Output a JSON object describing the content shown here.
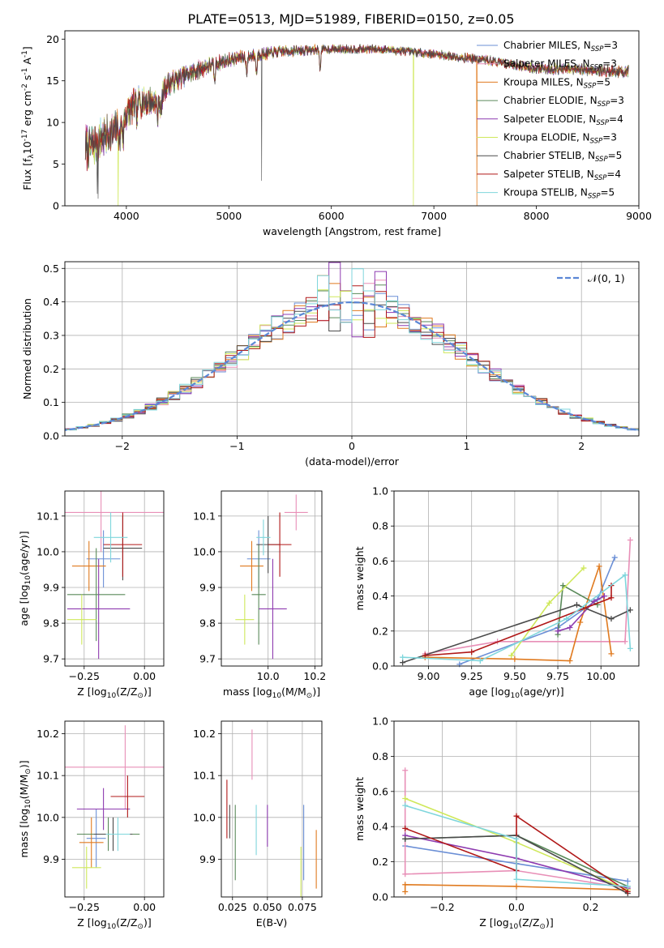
{
  "figure": {
    "title": "PLATE=0513, MJD=51989, FIBERID=0150, z=0.05"
  },
  "series": [
    {
      "name": "Chabrier MILES, N$_{SSP}$=3",
      "label_main": "Chabrier MILES, N",
      "label_sub": "SSP",
      "label_tail": "=3",
      "color": "#6b8fd6"
    },
    {
      "name": "Salpeter MILES, N$_{SSP}$=3",
      "label_main": "Salpeter MILES, N",
      "label_sub": "SSP",
      "label_tail": "=3",
      "color": "#e88fb7"
    },
    {
      "name": "Kroupa MILES, N$_{SSP}$=5",
      "label_main": "Kroupa MILES, N",
      "label_sub": "SSP",
      "label_tail": "=5",
      "color": "#e07a1f"
    },
    {
      "name": "Chabrier ELODIE, N$_{SSP}$=3",
      "label_main": "Chabrier ELODIE, N",
      "label_sub": "SSP",
      "label_tail": "=3",
      "color": "#5a8a5a"
    },
    {
      "name": "Salpeter ELODIE, N$_{SSP}$=4",
      "label_main": "Salpeter ELODIE, N",
      "label_sub": "SSP",
      "label_tail": "=4",
      "color": "#8e3bb0"
    },
    {
      "name": "Kroupa ELODIE, N$_{SSP}$=3",
      "label_main": "Kroupa ELODIE, N",
      "label_sub": "SSP",
      "label_tail": "=3",
      "color": "#cfe85a"
    },
    {
      "name": "Chabrier STELIB, N$_{SSP}$=5",
      "label_main": "Chabrier STELIB, N",
      "label_sub": "SSP",
      "label_tail": "=5",
      "color": "#4a4a4a"
    },
    {
      "name": "Salpeter STELIB, N$_{SSP}$=4",
      "label_main": "Salpeter STELIB, N",
      "label_sub": "SSP",
      "label_tail": "=4",
      "color": "#b01818"
    },
    {
      "name": "Kroupa STELIB, N$_{SSP}$=5",
      "label_main": "Kroupa STELIB, N",
      "label_sub": "SSP",
      "label_tail": "=5",
      "color": "#7fd6dc"
    }
  ],
  "chart_data": [
    {
      "id": "spectrum",
      "type": "line",
      "title": "PLATE=0513, MJD=51989, FIBERID=0150, z=0.05",
      "xlabel": "wavelength [Angstrom, rest frame]",
      "ylabel": "Flux [f$_\\lambda$10$^{-17}$ erg cm$^{-2}$ s$^{-1}$ A$^{-1}$]",
      "xlim": [
        3400,
        9000
      ],
      "ylim": [
        0,
        21
      ],
      "xticks": [
        4000,
        5000,
        6000,
        7000,
        8000,
        9000
      ],
      "yticks": [
        0,
        5,
        10,
        15,
        20
      ],
      "grid": false,
      "legend": "right",
      "data_range": [
        3600,
        8900
      ],
      "continuum": [
        [
          3600,
          7.0
        ],
        [
          3700,
          7.5
        ],
        [
          3800,
          8.5
        ],
        [
          3900,
          9.0
        ],
        [
          3950,
          10.0
        ],
        [
          4000,
          11.0
        ],
        [
          4100,
          12.5
        ],
        [
          4300,
          12.5
        ],
        [
          4400,
          14.5
        ],
        [
          4600,
          15.8
        ],
        [
          4800,
          16.8
        ],
        [
          5000,
          17.5
        ],
        [
          5200,
          18.0
        ],
        [
          5500,
          18.5
        ],
        [
          6000,
          18.8
        ],
        [
          6500,
          18.8
        ],
        [
          7000,
          18.2
        ],
        [
          7500,
          17.5
        ],
        [
          8000,
          16.5
        ],
        [
          8500,
          16.3
        ],
        [
          8850,
          16.1
        ]
      ],
      "noise": [
        [
          3600,
          2.5
        ],
        [
          4000,
          2.0
        ],
        [
          4500,
          1.2
        ],
        [
          5000,
          0.8
        ],
        [
          6000,
          0.5
        ],
        [
          7000,
          0.5
        ],
        [
          8000,
          0.6
        ],
        [
          8850,
          0.7
        ]
      ],
      "absorption_lines": [
        3934,
        3969,
        4102,
        4305,
        4340,
        4861,
        5175,
        5270,
        5890
      ]
    },
    {
      "id": "residuals",
      "type": "histogram",
      "xlabel": "(data-model)/error",
      "ylabel": "Normed distribution",
      "xlim": [
        -2.5,
        2.5
      ],
      "ylim": [
        0,
        0.52
      ],
      "xticks": [
        -2,
        -1,
        0,
        1,
        2
      ],
      "yticks": [
        0,
        0.1,
        0.2,
        0.3,
        0.4,
        0.5
      ],
      "grid": true,
      "bin_width": 0.1,
      "legend": "top-right",
      "reference_curve": {
        "name": "$\\mathcal{N}(0,1)$",
        "label": "𝒩(0, 1)",
        "color": "#5b87d6",
        "mu": 0,
        "sigma": 1
      }
    },
    {
      "id": "z_vs_age",
      "type": "errorbar",
      "xlabel": "Z [log$_{10}$(Z/Z$_\\odot$)]",
      "ylabel": "age  [log$_{10}$(age/yr)]",
      "xlim": [
        -0.33,
        0.08
      ],
      "ylim": [
        9.68,
        10.17
      ],
      "xticks": [
        -0.25,
        0.0
      ],
      "yticks": [
        9.7,
        9.8,
        9.9,
        10.0,
        10.1
      ],
      "grid": true,
      "points": [
        {
          "x": -0.17,
          "xerr": 0.07,
          "y": 9.98,
          "yerr": 0.08
        },
        {
          "x": -0.18,
          "xerr": 0.27,
          "y": 10.11,
          "yerr": 0.11
        },
        {
          "x": -0.23,
          "xerr": 0.07,
          "y": 9.96,
          "yerr": 0.07
        },
        {
          "x": -0.2,
          "xerr": 0.12,
          "y": 9.88,
          "yerr": 0.13
        },
        {
          "x": -0.19,
          "xerr": 0.13,
          "y": 9.84,
          "yerr": 0.14
        },
        {
          "x": -0.26,
          "xerr": 0.06,
          "y": 9.81,
          "yerr": 0.07
        },
        {
          "x": -0.09,
          "xerr": 0.08,
          "y": 10.01,
          "yerr": 0.09
        },
        {
          "x": -0.09,
          "xerr": 0.08,
          "y": 10.02,
          "yerr": 0.09
        },
        {
          "x": -0.14,
          "xerr": 0.07,
          "y": 10.04,
          "yerr": 0.07
        }
      ]
    },
    {
      "id": "mass_vs_age",
      "type": "errorbar",
      "xlabel": "mass [log$_{10}$(M/M$_\\odot$)]",
      "ylabel": "",
      "xlim": [
        9.8,
        10.23
      ],
      "ylim": [
        9.68,
        10.17
      ],
      "xticks": [
        10.0,
        10.2
      ],
      "yticks": [
        9.7,
        9.8,
        9.9,
        10.0,
        10.1
      ],
      "grid": true,
      "points": [
        {
          "x": 9.96,
          "xerr": 0.05,
          "y": 9.98,
          "yerr": 0.08
        },
        {
          "x": 10.12,
          "xerr": 0.05,
          "y": 10.11,
          "yerr": 0.05
        },
        {
          "x": 9.93,
          "xerr": 0.05,
          "y": 9.96,
          "yerr": 0.07
        },
        {
          "x": 9.96,
          "xerr": 0.03,
          "y": 9.88,
          "yerr": 0.14
        },
        {
          "x": 10.02,
          "xerr": 0.06,
          "y": 9.84,
          "yerr": 0.14
        },
        {
          "x": 9.9,
          "xerr": 0.04,
          "y": 9.81,
          "yerr": 0.07
        },
        {
          "x": 10.0,
          "xerr": 0.05,
          "y": 10.02,
          "yerr": 0.08
        },
        {
          "x": 10.05,
          "xerr": 0.05,
          "y": 10.02,
          "yerr": 0.09
        },
        {
          "x": 9.98,
          "xerr": 0.03,
          "y": 10.04,
          "yerr": 0.05
        }
      ]
    },
    {
      "id": "age_weights",
      "type": "line",
      "xlabel": "age  [log$_{10}$(age/yr)]",
      "ylabel": "mass weight",
      "xlim": [
        8.8,
        10.22
      ],
      "ylim": [
        0,
        1
      ],
      "xticks": [
        9.0,
        9.25,
        9.5,
        9.75,
        10.0
      ],
      "yticks": [
        0.0,
        0.2,
        0.4,
        0.6,
        0.8,
        1.0
      ],
      "grid": true,
      "lines": [
        [
          [
            9.18,
            0.01
          ],
          [
            9.75,
            0.22
          ],
          [
            9.98,
            0.38
          ],
          [
            10.08,
            0.62
          ]
        ],
        [
          [
            8.98,
            0.07
          ],
          [
            9.4,
            0.14
          ],
          [
            10.14,
            0.14
          ],
          [
            10.17,
            0.72
          ]
        ],
        [
          [
            8.98,
            0.05
          ],
          [
            9.5,
            0.04
          ],
          [
            9.82,
            0.03
          ],
          [
            9.88,
            0.25
          ],
          [
            9.99,
            0.57
          ],
          [
            10.06,
            0.07
          ]
        ],
        [
          [
            9.75,
            0.18
          ],
          [
            9.78,
            0.46
          ],
          [
            9.98,
            0.35
          ]
        ],
        [
          [
            9.75,
            0.2
          ],
          [
            9.82,
            0.22
          ],
          [
            9.96,
            0.37
          ],
          [
            10.02,
            0.4
          ]
        ],
        [
          [
            9.48,
            0.06
          ],
          [
            9.7,
            0.36
          ],
          [
            9.9,
            0.56
          ]
        ],
        [
          [
            8.85,
            0.02
          ],
          [
            9.86,
            0.35
          ],
          [
            10.06,
            0.27
          ],
          [
            10.17,
            0.32
          ]
        ],
        [
          [
            8.98,
            0.06
          ],
          [
            9.25,
            0.08
          ],
          [
            10.06,
            0.39
          ],
          [
            10.06,
            0.46
          ]
        ],
        [
          [
            8.85,
            0.05
          ],
          [
            9.3,
            0.03
          ],
          [
            9.8,
            0.27
          ],
          [
            10.14,
            0.52
          ],
          [
            10.17,
            0.1
          ]
        ]
      ]
    },
    {
      "id": "z_vs_mass",
      "type": "errorbar",
      "xlabel": "Z [log$_{10}$(Z/Z$_\\odot$)]",
      "ylabel": "mass [log$_{10}$(M/M$_\\odot$)]",
      "xlim": [
        -0.33,
        0.08
      ],
      "ylim": [
        9.81,
        10.23
      ],
      "xticks": [
        -0.25,
        0.0
      ],
      "yticks": [
        9.9,
        10.0,
        10.1,
        10.2
      ],
      "grid": true,
      "points": [
        {
          "x": -0.2,
          "xerr": 0.04,
          "y": 9.95,
          "yerr": 0.07
        },
        {
          "x": -0.08,
          "xerr": 0.27,
          "y": 10.12,
          "yerr": 0.1
        },
        {
          "x": -0.22,
          "xerr": 0.05,
          "y": 9.94,
          "yerr": 0.06
        },
        {
          "x": -0.15,
          "xerr": 0.13,
          "y": 9.96,
          "yerr": 0.04
        },
        {
          "x": -0.17,
          "xerr": 0.11,
          "y": 10.02,
          "yerr": 0.05
        },
        {
          "x": -0.24,
          "xerr": 0.06,
          "y": 9.88,
          "yerr": 0.05
        },
        {
          "x": -0.13,
          "xerr": 0.08,
          "y": 9.96,
          "yerr": 0.04
        },
        {
          "x": -0.07,
          "xerr": 0.07,
          "y": 10.05,
          "yerr": 0.05
        },
        {
          "x": -0.11,
          "xerr": 0.05,
          "y": 9.96,
          "yerr": 0.04
        }
      ]
    },
    {
      "id": "ebv_vs_mass",
      "type": "errorbar",
      "xlabel": "E(B-V)",
      "ylabel": "",
      "xlim": [
        0.017,
        0.089
      ],
      "ylim": [
        9.81,
        10.23
      ],
      "xticks": [
        0.025,
        0.05,
        0.075
      ],
      "yticks": [
        9.9,
        10.0,
        10.1,
        10.2
      ],
      "grid": true,
      "points": [
        {
          "x": 0.076,
          "xerr": 0,
          "y": 9.94,
          "yerr": 0.09
        },
        {
          "x": 0.039,
          "xerr": 0,
          "y": 10.15,
          "yerr": 0.06
        },
        {
          "x": 0.085,
          "xerr": 0,
          "y": 9.9,
          "yerr": 0.07
        },
        {
          "x": 0.027,
          "xerr": 0,
          "y": 9.94,
          "yerr": 0.09
        },
        {
          "x": 0.05,
          "xerr": 0,
          "y": 9.98,
          "yerr": 0.05
        },
        {
          "x": 0.074,
          "xerr": 0,
          "y": 9.87,
          "yerr": 0.06
        },
        {
          "x": 0.023,
          "xerr": 0,
          "y": 9.99,
          "yerr": 0.04
        },
        {
          "x": 0.021,
          "xerr": 0,
          "y": 10.02,
          "yerr": 0.07
        },
        {
          "x": 0.042,
          "xerr": 0,
          "y": 9.97,
          "yerr": 0.06
        }
      ]
    },
    {
      "id": "z_weights",
      "type": "line",
      "xlabel": "Z [log$_{10}$(Z/Z$_\\odot$)]",
      "ylabel": "mass weight",
      "xlim": [
        -0.33,
        0.33
      ],
      "ylim": [
        0,
        1
      ],
      "xticks": [
        -0.2,
        0.0,
        0.2
      ],
      "yticks": [
        0.0,
        0.2,
        0.4,
        0.6,
        0.8,
        1.0
      ],
      "grid": true,
      "lines": [
        [
          [
            -0.3,
            0.29
          ],
          [
            0.0,
            0.19
          ],
          [
            0.3,
            0.09
          ]
        ],
        [
          [
            -0.3,
            0.72
          ],
          [
            -0.3,
            0.13
          ],
          [
            0.0,
            0.15
          ],
          [
            0.3,
            0.05
          ]
        ],
        [
          [
            -0.3,
            0.03
          ],
          [
            -0.3,
            0.07
          ],
          [
            0.0,
            0.06
          ],
          [
            0.3,
            0.04
          ]
        ],
        [
          [
            -0.3,
            0.33
          ],
          [
            0.0,
            0.35
          ],
          [
            0.3,
            0.06
          ]
        ],
        [
          [
            -0.3,
            0.35
          ],
          [
            0.0,
            0.22
          ],
          [
            0.3,
            0.05
          ]
        ],
        [
          [
            -0.3,
            0.56
          ],
          [
            0.0,
            0.31
          ],
          [
            0.3,
            0.04
          ]
        ],
        [
          [
            -0.3,
            0.33
          ],
          [
            0.0,
            0.35
          ],
          [
            0.3,
            0.02
          ]
        ],
        [
          [
            -0.3,
            0.39
          ],
          [
            0.0,
            0.15
          ],
          [
            0.0,
            0.46
          ],
          [
            0.3,
            0.03
          ]
        ],
        [
          [
            -0.3,
            0.52
          ],
          [
            0.0,
            0.33
          ],
          [
            0.0,
            0.1
          ],
          [
            0.3,
            0.06
          ]
        ]
      ]
    }
  ]
}
